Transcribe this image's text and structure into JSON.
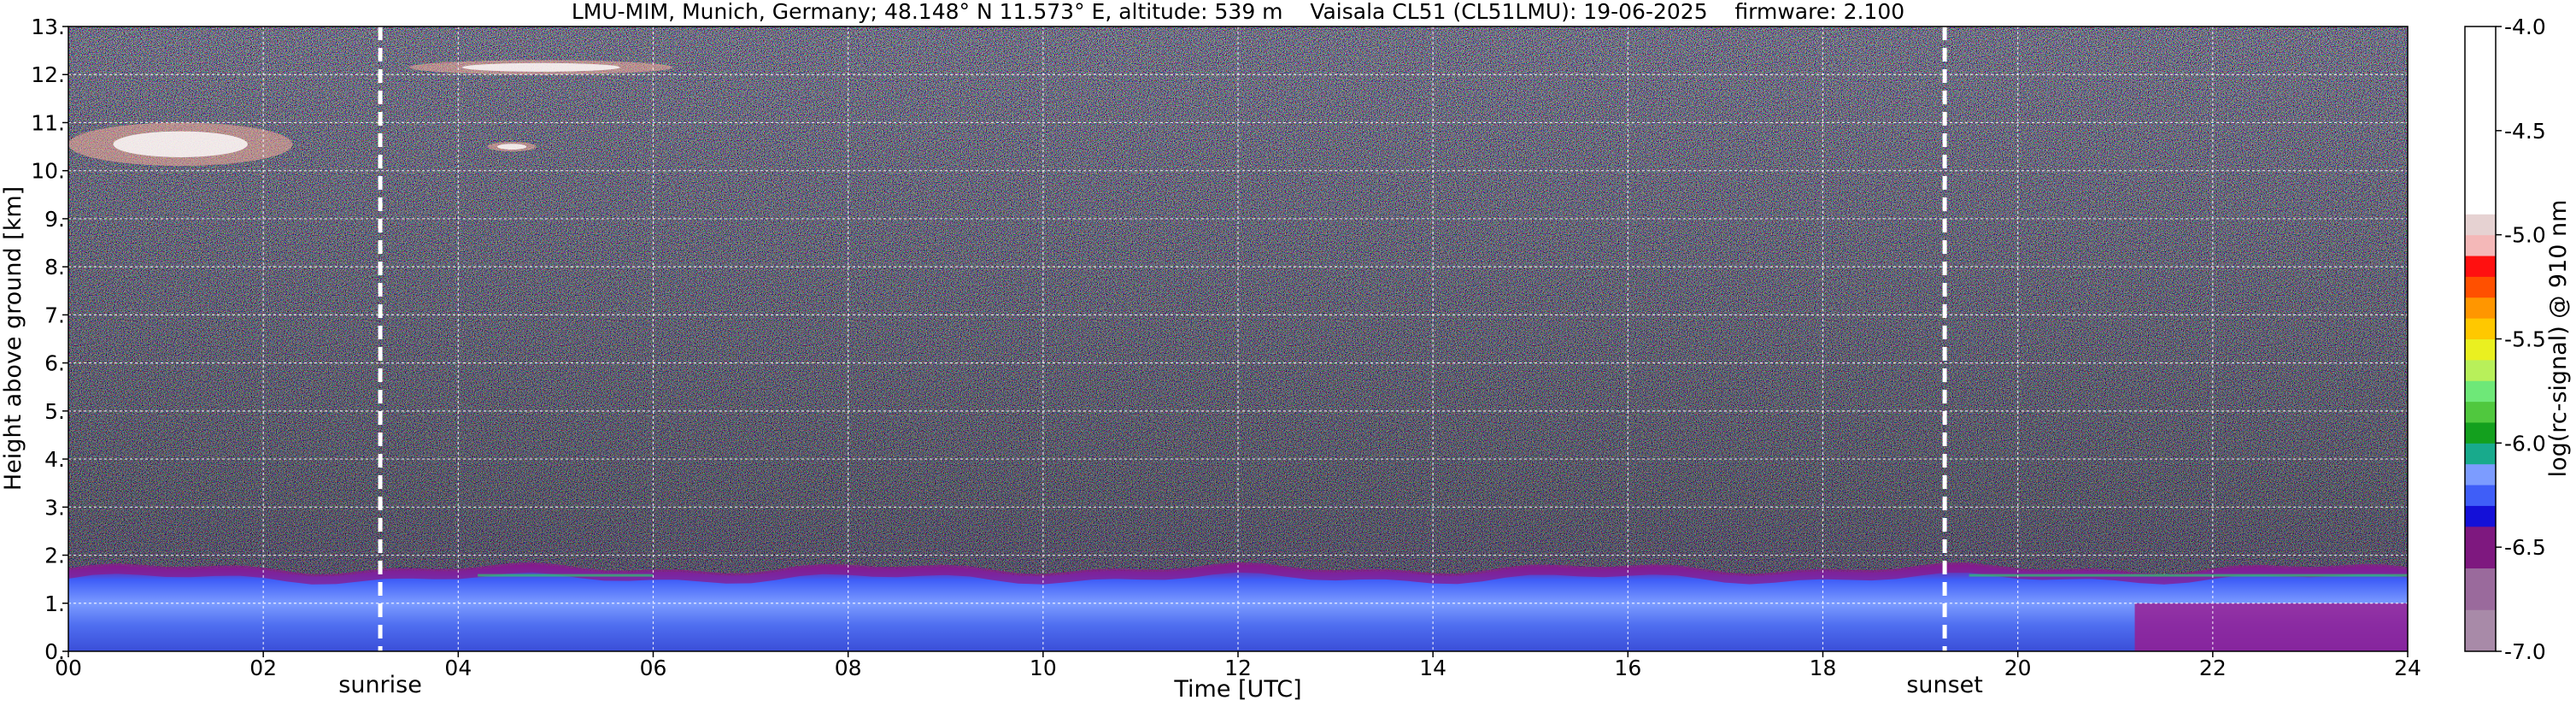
{
  "chart_data": {
    "type": "heatmap",
    "title": "LMU-MIM, Munich, Germany; 48.148° N 11.573° E, altitude: 539 m    Vaisala CL51 (CL51LMU): 19-06-2025    firmware: 2.100",
    "xlabel": "Time [UTC]",
    "ylabel": "Height above ground [km]",
    "xlim": [
      0,
      24
    ],
    "ylim": [
      0,
      13
    ],
    "x_ticks": [
      {
        "value": 0,
        "label": "00"
      },
      {
        "value": 2,
        "label": "02"
      },
      {
        "value": 4,
        "label": "04"
      },
      {
        "value": 6,
        "label": "06"
      },
      {
        "value": 8,
        "label": "08"
      },
      {
        "value": 10,
        "label": "10"
      },
      {
        "value": 12,
        "label": "12"
      },
      {
        "value": 14,
        "label": "14"
      },
      {
        "value": 16,
        "label": "16"
      },
      {
        "value": 18,
        "label": "18"
      },
      {
        "value": 20,
        "label": "20"
      },
      {
        "value": 22,
        "label": "22"
      },
      {
        "value": 24,
        "label": "24"
      }
    ],
    "y_ticks": [
      {
        "value": 0,
        "label": "0."
      },
      {
        "value": 1,
        "label": "1."
      },
      {
        "value": 2,
        "label": "2."
      },
      {
        "value": 3,
        "label": "3."
      },
      {
        "value": 4,
        "label": "4."
      },
      {
        "value": 5,
        "label": "5."
      },
      {
        "value": 6,
        "label": "6."
      },
      {
        "value": 7,
        "label": "7."
      },
      {
        "value": 8,
        "label": "8."
      },
      {
        "value": 9,
        "label": "9."
      },
      {
        "value": 10,
        "label": "10."
      },
      {
        "value": 11,
        "label": "11."
      },
      {
        "value": 12,
        "label": "12."
      },
      {
        "value": 13,
        "label": "13."
      }
    ],
    "grid": true,
    "markers": [
      {
        "label": "sunrise",
        "time": 3.2
      },
      {
        "label": "sunset",
        "time": 19.25
      }
    ],
    "colorbar": {
      "label": "log(rc-signal) @ 910 nm",
      "range": [
        -7.0,
        -4.0
      ],
      "ticks": [
        "-4.0",
        "-4.5",
        "-5.0",
        "-5.5",
        "-6.0",
        "-6.5",
        "-7.0"
      ],
      "levels": [
        {
          "from": -7.0,
          "to": -6.8,
          "color": "#a88aa8"
        },
        {
          "from": -6.8,
          "to": -6.6,
          "color": "#9a6a9c"
        },
        {
          "from": -6.6,
          "to": -6.4,
          "color": "#7e187f"
        },
        {
          "from": -6.4,
          "to": -6.3,
          "color": "#1410d8"
        },
        {
          "from": -6.3,
          "to": -6.2,
          "color": "#3f5ef8"
        },
        {
          "from": -6.2,
          "to": -6.1,
          "color": "#7c9cff"
        },
        {
          "from": -6.1,
          "to": -6.0,
          "color": "#18aa8c"
        },
        {
          "from": -6.0,
          "to": -5.9,
          "color": "#13a01e"
        },
        {
          "from": -5.9,
          "to": -5.8,
          "color": "#50c83e"
        },
        {
          "from": -5.8,
          "to": -5.7,
          "color": "#6ee878"
        },
        {
          "from": -5.7,
          "to": -5.6,
          "color": "#b8f05a"
        },
        {
          "from": -5.6,
          "to": -5.5,
          "color": "#eaf020"
        },
        {
          "from": -5.5,
          "to": -5.4,
          "color": "#ffc800"
        },
        {
          "from": -5.4,
          "to": -5.3,
          "color": "#ff9600"
        },
        {
          "from": -5.3,
          "to": -5.2,
          "color": "#ff5000"
        },
        {
          "from": -5.2,
          "to": -5.1,
          "color": "#ff1010"
        },
        {
          "from": -5.1,
          "to": -5.0,
          "color": "#f4b8b8"
        },
        {
          "from": -5.0,
          "to": -4.9,
          "color": "#e6d2d2"
        },
        {
          "from": -4.9,
          "to": -4.0,
          "color": "#ffffff"
        }
      ]
    },
    "features": [
      {
        "name": "boundary layer aerosol",
        "t_start": 0,
        "t_end": 24,
        "height_top_km": 1.8
      },
      {
        "name": "upper cloud",
        "t_start": 0.0,
        "t_end": 2.3,
        "height_km": [
          10.1,
          11.0
        ]
      },
      {
        "name": "upper cloud",
        "t_start": 3.5,
        "t_end": 6.2,
        "height_km": [
          12.0,
          12.3
        ]
      },
      {
        "name": "upper cloud",
        "t_start": 4.3,
        "t_end": 4.8,
        "height_km": [
          10.4,
          10.6
        ]
      }
    ]
  },
  "colors": {
    "background_dark": "#0c0c10",
    "marker_line": "#ffffff",
    "grid_line": "#ffffff"
  }
}
